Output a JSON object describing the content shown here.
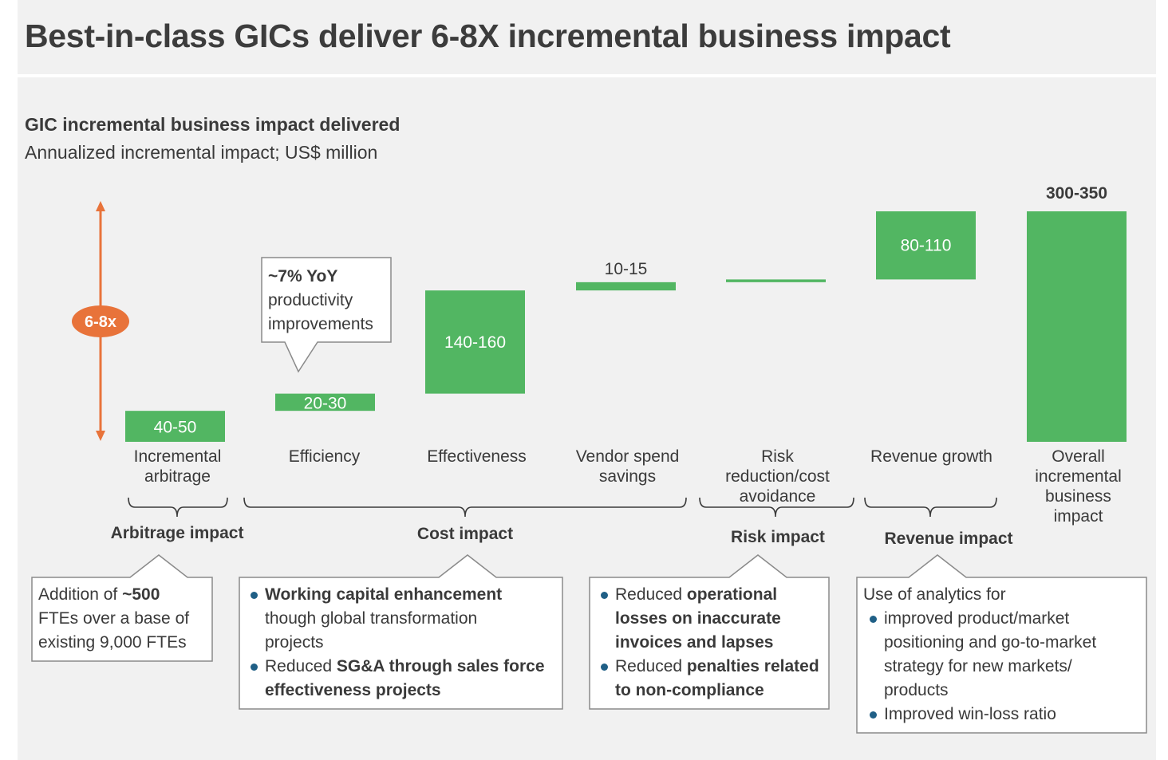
{
  "page_title": "Best-in-class GICs deliver 6-8X incremental business impact",
  "colors": {
    "bar": "#52b662",
    "arrow": "#e8733a",
    "bullet": "#1f5f86",
    "panel": "#f1f1f1",
    "text": "#3a3a3a"
  },
  "chart_data": {
    "type": "waterfall",
    "title": "GIC incremental business impact delivered",
    "subtitle": "Annualized incremental impact; US$ million",
    "categories": [
      "Incremental arbitrage",
      "Efficiency",
      "Effectiveness",
      "Vendor spend savings",
      "Risk reduction/cost avoidance",
      "Revenue growth",
      "Overall incremental business impact"
    ],
    "category_lines": [
      [
        "Incremental",
        "arbitrage"
      ],
      [
        "Efficiency"
      ],
      [
        "Effectiveness"
      ],
      [
        "Vendor spend",
        "savings"
      ],
      [
        "Risk",
        "reduction/cost",
        "avoidance"
      ],
      [
        "Revenue growth"
      ],
      [
        "Overall",
        "incremental",
        "business",
        "impact"
      ]
    ],
    "value_labels": [
      "40-50",
      "20-30",
      "140-160",
      "10-15",
      "",
      "80-110",
      "300-350"
    ],
    "ranges": [
      [
        0,
        45
      ],
      [
        45,
        70
      ],
      [
        70,
        220
      ],
      [
        220,
        232
      ],
      [
        232,
        236
      ],
      [
        236,
        335
      ],
      [
        0,
        335
      ]
    ],
    "ylim": [
      0,
      360
    ],
    "grid": false,
    "multiplier_badge": "6-8x",
    "callout": {
      "bold": "~7% YoY",
      "rest": [
        "productivity",
        "improvements"
      ]
    }
  },
  "groups": [
    {
      "label": "Arbitrage impact",
      "lines": [
        [
          {
            "t": "Addition of "
          },
          {
            "t": "~500",
            "b": true
          }
        ],
        [
          {
            "t": "FTEs over a base of"
          }
        ],
        [
          {
            "t": "existing 9,000 FTEs"
          }
        ]
      ]
    },
    {
      "label": "Cost impact",
      "bullets": [
        [
          [
            {
              "t": "Working capital enhancement",
              "b": true
            }
          ],
          [
            {
              "t": "though global transformation"
            }
          ],
          [
            {
              "t": "projects"
            }
          ]
        ],
        [
          [
            {
              "t": "Reduced "
            },
            {
              "t": "SG&A through sales force",
              "b": true
            }
          ],
          [
            {
              "t": "effectiveness projects",
              "b": true
            }
          ]
        ]
      ]
    },
    {
      "label": "Risk impact",
      "bullets": [
        [
          [
            {
              "t": "Reduced "
            },
            {
              "t": "operational",
              "b": true
            }
          ],
          [
            {
              "t": "losses on inaccurate",
              "b": true
            }
          ],
          [
            {
              "t": "invoices and lapses",
              "b": true
            }
          ]
        ],
        [
          [
            {
              "t": "Reduced "
            },
            {
              "t": "penalties related",
              "b": true
            }
          ],
          [
            {
              "t": "to non-compliance",
              "b": true
            }
          ]
        ]
      ]
    },
    {
      "label": "Revenue impact",
      "intro": "Use of analytics for",
      "bullets": [
        [
          [
            {
              "t": "improved product/market"
            }
          ],
          [
            {
              "t": "positioning and go-to-market"
            }
          ],
          [
            {
              "t": "strategy for new markets/"
            }
          ],
          [
            {
              "t": "products"
            }
          ]
        ],
        [
          [
            {
              "t": "Improved win-loss ratio"
            }
          ]
        ]
      ]
    }
  ]
}
